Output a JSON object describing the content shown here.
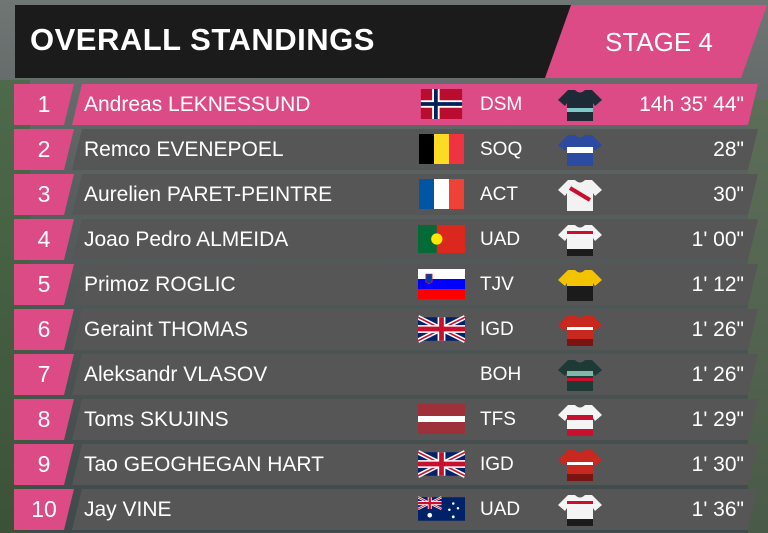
{
  "header": {
    "title": "OVERALL STANDINGS",
    "stage": "STAGE 4"
  },
  "colors": {
    "accent_pink": "#dc4b86",
    "row_gray": "#565656",
    "title_black": "#1b1b1b"
  },
  "standings": [
    {
      "rank": "1",
      "name": "Andreas LEKNESSUND",
      "flag": "norway-flag",
      "team": "DSM",
      "jersey": "team-dsm-jersey",
      "time": "14h 35' 44\""
    },
    {
      "rank": "2",
      "name": "Remco EVENEPOEL",
      "flag": "belgium-flag",
      "team": "SOQ",
      "jersey": "team-soq-jersey",
      "time": "28\""
    },
    {
      "rank": "3",
      "name": "Aurelien PARET-PEINTRE",
      "flag": "france-flag",
      "team": "ACT",
      "jersey": "team-act-jersey",
      "time": "30\""
    },
    {
      "rank": "4",
      "name": "Joao Pedro ALMEIDA",
      "flag": "portugal-flag",
      "team": "UAD",
      "jersey": "team-uad-jersey",
      "time": "1' 00\""
    },
    {
      "rank": "5",
      "name": "Primoz ROGLIC",
      "flag": "slovenia-flag",
      "team": "TJV",
      "jersey": "team-tjv-jersey",
      "time": "1' 12\""
    },
    {
      "rank": "6",
      "name": "Geraint THOMAS",
      "flag": "great-britain-flag",
      "team": "IGD",
      "jersey": "team-igd-jersey",
      "time": "1' 26\""
    },
    {
      "rank": "7",
      "name": "Aleksandr VLASOV",
      "flag": "",
      "team": "BOH",
      "jersey": "team-boh-jersey",
      "time": "1' 26\""
    },
    {
      "rank": "8",
      "name": "Toms SKUJINS",
      "flag": "latvia-flag",
      "team": "TFS",
      "jersey": "team-tfs-jersey",
      "time": "1' 29\""
    },
    {
      "rank": "9",
      "name": "Tao GEOGHEGAN HART",
      "flag": "great-britain-flag",
      "team": "IGD",
      "jersey": "team-igd-jersey",
      "time": "1' 30\""
    },
    {
      "rank": "10",
      "name": "Jay VINE",
      "flag": "australia-flag",
      "team": "UAD",
      "jersey": "team-uad-jersey",
      "time": "1' 36\""
    }
  ]
}
